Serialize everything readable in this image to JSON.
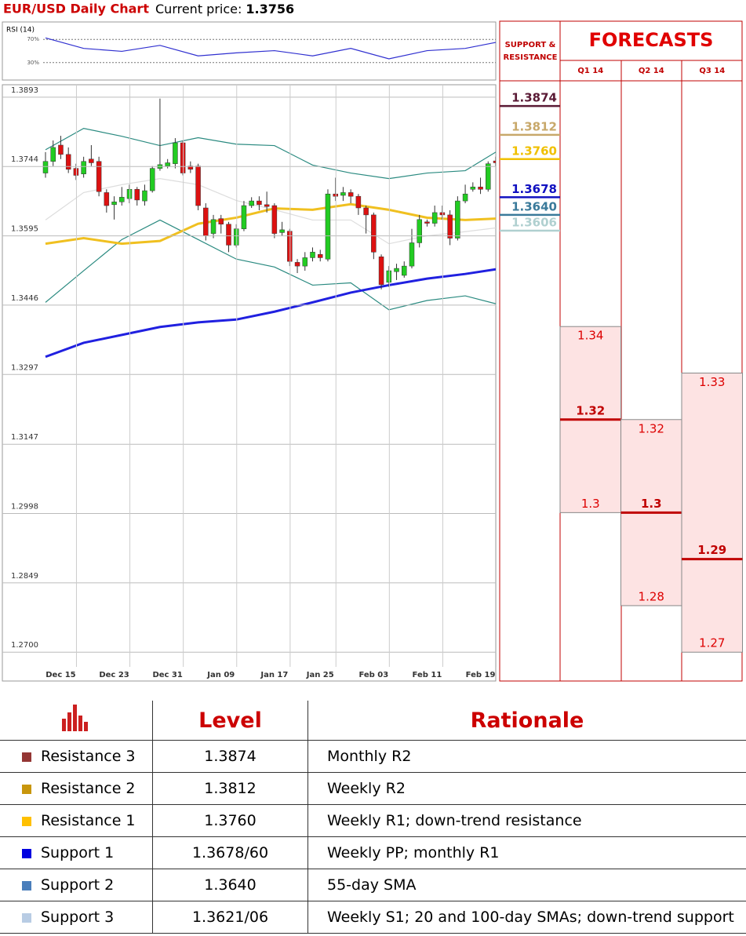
{
  "header": {
    "title": "EUR/USD Daily Chart",
    "price_label": "Current price:",
    "price": 1.3756
  },
  "chart_data": [
    {
      "type": "candlestick",
      "categories": [
        null,
        null,
        "Dec 15",
        null,
        null,
        null,
        null,
        null,
        null,
        "Dec 23",
        null,
        null,
        null,
        null,
        null,
        null,
        "Dec 31",
        null,
        null,
        null,
        null,
        null,
        null,
        "Jan 09",
        null,
        null,
        null,
        null,
        null,
        null,
        "Jan 17",
        null,
        null,
        null,
        null,
        null,
        "Jan 25",
        null,
        null,
        null,
        null,
        null,
        null,
        "Feb 03",
        null,
        null,
        null,
        null,
        null,
        null,
        "Feb 11",
        null,
        null,
        null,
        null,
        null,
        null,
        "Feb 19",
        null,
        null
      ],
      "open": [
        1.373,
        1.3755,
        1.379,
        1.377,
        1.374,
        1.3728,
        1.376,
        1.3755,
        1.3688,
        1.3662,
        1.3668,
        1.3675,
        1.3695,
        1.367,
        1.3692,
        1.374,
        1.3745,
        1.375,
        1.3795,
        1.3745,
        1.3745,
        1.3655,
        1.36,
        1.3632,
        1.362,
        1.3575,
        1.361,
        1.366,
        1.367,
        1.3662,
        1.366,
        1.3602,
        1.3605,
        1.3538,
        1.353,
        1.3548,
        1.3555,
        1.3545,
        1.3685,
        1.3682,
        1.3688,
        1.368,
        1.3655,
        1.364,
        1.355,
        1.3495,
        1.3518,
        1.351,
        1.353,
        1.358,
        1.3625,
        1.3622,
        1.3645,
        1.364,
        1.359,
        1.367,
        1.3695,
        1.37,
        1.3695,
        1.3756
      ],
      "high": [
        1.3775,
        1.38,
        1.381,
        1.3785,
        1.375,
        1.3765,
        1.379,
        1.3765,
        1.3695,
        1.368,
        1.37,
        1.3705,
        1.37,
        1.3705,
        1.3745,
        1.389,
        1.376,
        1.3805,
        1.38,
        1.3755,
        1.375,
        1.3665,
        1.364,
        1.364,
        1.3625,
        1.362,
        1.367,
        1.3678,
        1.368,
        1.369,
        1.3665,
        1.3625,
        1.361,
        1.3545,
        1.356,
        1.357,
        1.3565,
        1.3695,
        1.372,
        1.37,
        1.3695,
        1.3685,
        1.366,
        1.3645,
        1.3555,
        1.353,
        1.3535,
        1.354,
        1.361,
        1.364,
        1.363,
        1.366,
        1.366,
        1.365,
        1.368,
        1.3705,
        1.371,
        1.372,
        1.3755,
        1.3765
      ],
      "low": [
        1.372,
        1.3745,
        1.376,
        1.373,
        1.3715,
        1.372,
        1.3745,
        1.368,
        1.3645,
        1.363,
        1.366,
        1.3665,
        1.366,
        1.366,
        1.3688,
        1.3735,
        1.374,
        1.374,
        1.3725,
        1.373,
        1.365,
        1.3585,
        1.359,
        1.36,
        1.356,
        1.357,
        1.3605,
        1.3655,
        1.365,
        1.3645,
        1.359,
        1.3595,
        1.353,
        1.3515,
        1.352,
        1.354,
        1.354,
        1.354,
        1.367,
        1.367,
        1.3665,
        1.364,
        1.36,
        1.3545,
        1.348,
        1.3485,
        1.35,
        1.3505,
        1.3525,
        1.357,
        1.3615,
        1.3615,
        1.363,
        1.3575,
        1.3585,
        1.3665,
        1.369,
        1.3685,
        1.369,
        1.3745
      ],
      "close": [
        1.3755,
        1.3785,
        1.377,
        1.3738,
        1.3725,
        1.3755,
        1.3752,
        1.369,
        1.366,
        1.3668,
        1.3678,
        1.3695,
        1.3672,
        1.3692,
        1.374,
        1.3748,
        1.3752,
        1.3795,
        1.373,
        1.3738,
        1.366,
        1.3595,
        1.363,
        1.362,
        1.3575,
        1.361,
        1.366,
        1.367,
        1.3662,
        1.3658,
        1.36,
        1.3608,
        1.354,
        1.353,
        1.3548,
        1.356,
        1.3548,
        1.3685,
        1.368,
        1.3688,
        1.368,
        1.3655,
        1.364,
        1.356,
        1.349,
        1.352,
        1.3525,
        1.353,
        1.358,
        1.363,
        1.3622,
        1.3645,
        1.364,
        1.359,
        1.367,
        1.3685,
        1.37,
        1.3695,
        1.375,
        1.3752
      ],
      "up_color": "#22cc22",
      "down_color": "#dd1111",
      "ylim": [
        1.2638,
        1.3908
      ],
      "yticks": [
        1.3893,
        1.3744,
        1.3595,
        1.3446,
        1.3297,
        1.3147,
        1.2998,
        1.2849,
        {
          "value": 1.27,
          "label": "1.2700"
        }
      ],
      "grid": true,
      "overlays": [
        {
          "color": "#2a8a80",
          "x": [
            0,
            5,
            10,
            15,
            20,
            25,
            30,
            35,
            40,
            45,
            50,
            55,
            59
          ],
          "values": [
            1.378,
            1.3826,
            1.3809,
            1.3789,
            1.3806,
            1.3792,
            1.3789,
            1.3747,
            1.373,
            1.3718,
            1.373,
            1.3735,
            1.3775
          ]
        },
        {
          "color": "#2a8a80",
          "x": [
            0,
            5,
            10,
            15,
            20,
            25,
            30,
            35,
            40,
            45,
            50,
            55,
            59
          ],
          "values": [
            1.3452,
            1.352,
            1.3587,
            1.3629,
            1.3587,
            1.3545,
            1.3528,
            1.3489,
            1.3494,
            1.3436,
            1.3456,
            1.3466,
            1.3449
          ]
        },
        {
          "color": "#dddddd",
          "x": [
            0,
            5,
            10,
            15,
            20,
            25,
            30,
            35,
            40,
            45,
            50,
            55,
            59
          ],
          "values": [
            1.3629,
            1.3688,
            1.3705,
            1.3718,
            1.3705,
            1.3671,
            1.3651,
            1.3629,
            1.3629,
            1.3578,
            1.3595,
            1.3604,
            1.3612
          ]
        },
        {
          "color": "#f0c020",
          "x": [
            0,
            5,
            10,
            15,
            20,
            25,
            30,
            35,
            40,
            45,
            50,
            55,
            59
          ],
          "values": [
            1.3578,
            1.359,
            1.3578,
            1.3584,
            1.3621,
            1.3634,
            1.3654,
            1.3651,
            1.3663,
            1.3651,
            1.3634,
            1.3629,
            1.3632
          ]
        },
        {
          "color": "#2020e0",
          "x": [
            0,
            5,
            10,
            15,
            20,
            25,
            30,
            35,
            40,
            45,
            50,
            55,
            59
          ],
          "values": [
            1.3335,
            1.3365,
            1.3382,
            1.3399,
            1.3409,
            1.3415,
            1.3432,
            1.3452,
            1.3473,
            1.3489,
            1.3503,
            1.3513,
            1.3523
          ]
        }
      ]
    },
    {
      "type": "line",
      "title": "RSI (14)",
      "x": [
        0,
        5,
        10,
        15,
        20,
        25,
        30,
        35,
        40,
        45,
        50,
        55,
        59
      ],
      "values": [
        72.6,
        54.5,
        49.4,
        59.7,
        41.6,
        46.8,
        50.6,
        41.6,
        54.5,
        36.5,
        50.6,
        54.5,
        64.8
      ],
      "color": "#3030d0",
      "ylim": [
        0,
        100
      ],
      "yticks": [
        {
          "value": 70,
          "label": "70%"
        },
        {
          "value": 30,
          "label": "30%"
        }
      ]
    }
  ],
  "levels": {
    "title": "SUPPORT & RESISTANCE",
    "items": [
      {
        "value": 1.3874,
        "color": "#5a1a35"
      },
      {
        "value": 1.3812,
        "color": "#c8a86a"
      },
      {
        "value": 1.376,
        "label": "1.3760",
        "color": "#f0c000"
      },
      {
        "value": 1.3678,
        "color": "#1010c0"
      },
      {
        "value": 1.364,
        "label": "1.3640",
        "color": "#3a7a9a"
      },
      {
        "value": 1.3606,
        "color": "#b0d0d0"
      }
    ]
  },
  "forecasts": {
    "title": "FORECASTS",
    "columns": [
      {
        "name": "Q1 14",
        "high": 1.34,
        "mid": 1.32,
        "low": 1.3
      },
      {
        "name": "Q2 14",
        "high": 1.32,
        "mid": 1.3,
        "low": 1.28
      },
      {
        "name": "Q3 14",
        "high": 1.33,
        "mid": 1.29,
        "low": 1.27
      }
    ]
  },
  "table": {
    "header": [
      "Level",
      "Rationale"
    ],
    "rows": [
      {
        "name": "Resistance 3",
        "color": "#943634",
        "level": "1.3874",
        "rationale": "Monthly R2"
      },
      {
        "name": "Resistance 2",
        "color": "#c8960c",
        "level": "1.3812",
        "rationale": "Weekly R2"
      },
      {
        "name": "Resistance 1",
        "color": "#ffc000",
        "level": "1.3760",
        "rationale": "Weekly R1; down-trend resistance"
      },
      {
        "name": "Support 1",
        "color": "#0000e0",
        "level": "1.3678/60",
        "rationale": "Weekly PP; monthly R1"
      },
      {
        "name": "Support 2",
        "color": "#4a7ebb",
        "level": "1.3640",
        "rationale": "55-day SMA"
      },
      {
        "name": "Support 3",
        "color": "#b8cce4",
        "level": "1.3621/06",
        "rationale": "Weekly S1; 20 and 100-day SMAs; down-trend support"
      }
    ]
  }
}
